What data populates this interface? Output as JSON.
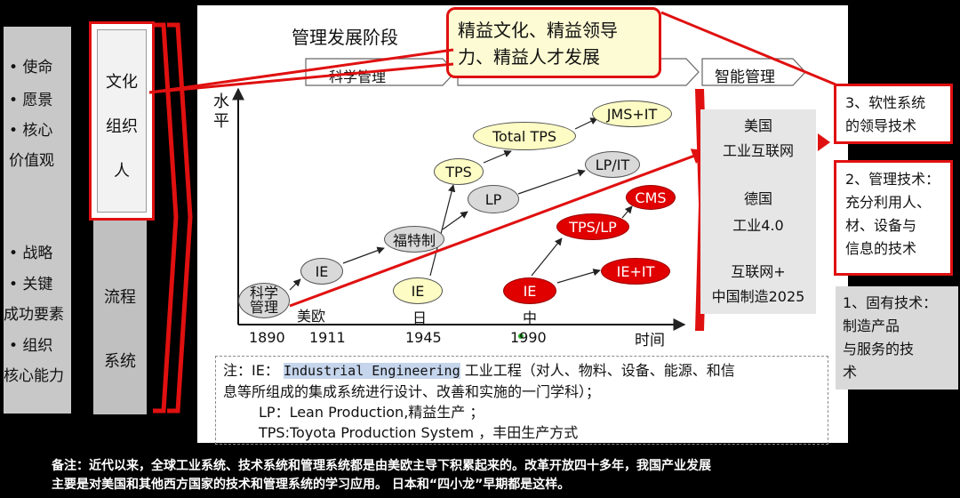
{
  "left_panel": {
    "items": [
      "•  使命",
      "•  愿景",
      "•  核心",
      "价值观",
      "•  战略",
      "•  关键",
      "成功要素",
      "•  组织",
      "核心能力"
    ]
  },
  "culture_box": {
    "lines": [
      "文化",
      "组织",
      "人"
    ]
  },
  "process_box": {
    "lines": [
      "流程",
      "系统"
    ]
  },
  "diagram": {
    "title": "管理发展阶段",
    "phase_partial": "科学管理",
    "phase_smart": "智能管理",
    "y_axis_label_1": "水",
    "y_axis_label_2": "平",
    "x_ticks": [
      "1890",
      "1911",
      "1945",
      "1990",
      "时间"
    ],
    "region_labels": [
      "美欧",
      "日",
      "中"
    ],
    "nodes": {
      "sci_mgmt_1": "科学",
      "sci_mgmt_2": "管理",
      "ie_us": "IE",
      "ford": "福特制",
      "lp": "LP",
      "lp_it": "LP/IT",
      "ie_jp": "IE",
      "tps": "TPS",
      "total_tps": "Total TPS",
      "jms_it": "JMS+IT",
      "ie_cn": "IE",
      "tps_lp": "TPS/LP",
      "cms": "CMS",
      "ie_it": "IE+IT"
    }
  },
  "callout": {
    "line1": "精益文化、精益领导",
    "line2": "力、精益人才发展"
  },
  "right_gray": {
    "us_1": "美国",
    "us_2": "工业互联网",
    "de_1": "德国",
    "de_2": "工业4.0",
    "cn_1": "互联网+",
    "cn_2": "中国制造2025"
  },
  "right_boxes": {
    "soft_1": "3、软性系统",
    "soft_2": "的领导技术",
    "mgmt_1": "2、管理技术：",
    "mgmt_2": "充分利用人、",
    "mgmt_3": "材、设备与",
    "mgmt_4": "信息的技术",
    "inherent_1": "1、固有技术：",
    "inherent_2": "制造产品",
    "inherent_3": "与服务的技",
    "inherent_4": "术"
  },
  "note": {
    "prefix": "注：IE：",
    "ie_highlight": "Industrial Engineering",
    "ie_rest": "工业工程（对人、物料、设备、能源、和信",
    "line2": "息等所组成的集成系统进行设计、改善和实施的一门学科）；",
    "line3": "LP：Lean Production,精益生产 ；",
    "line4": "TPS:Toyota Production System ，丰田生产方式"
  },
  "footer": {
    "line1": "备注：近代以来，全球工业系统、技术系统和管理系统都是由美欧主导下积累起来的。改革开放四十多年，我国产业发展",
    "line2": "主要是对美国和其他西方国家的技术和管理系统的学习应用。   日本和“四小龙”早期都是这样。"
  },
  "colors": {
    "accent_red": "#e01010",
    "node_red": "#e00000",
    "node_yellow": "#fdfcc4",
    "node_gray": "#d9d9d9"
  }
}
